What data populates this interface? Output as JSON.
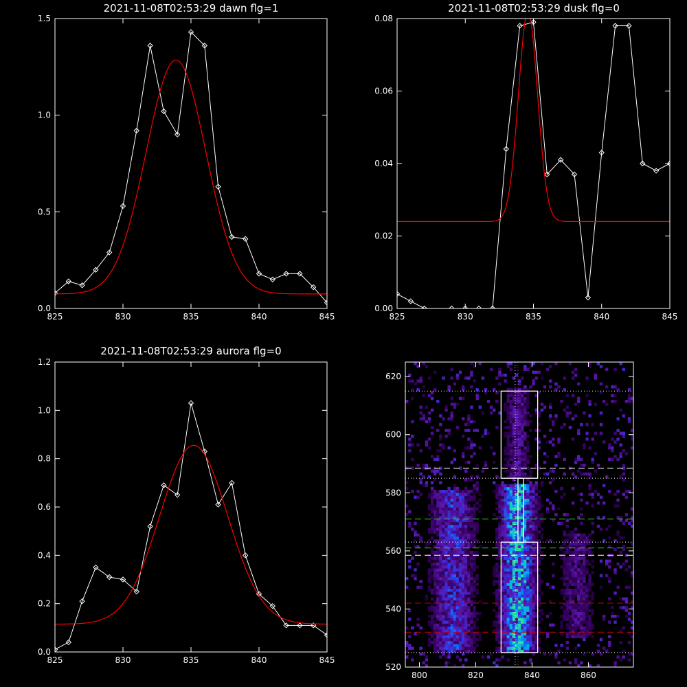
{
  "chart_data": [
    {
      "type": "line",
      "title": "2021-11-08T02:53:29 dawn flg=1",
      "xlim": [
        825,
        845
      ],
      "ylim": [
        0,
        1.5
      ],
      "xticks": [
        825,
        830,
        835,
        840,
        845
      ],
      "yticks": [
        0,
        0.5,
        1.0,
        1.5
      ],
      "ytick_labels": [
        "0.0",
        "0.5",
        "1.0",
        "1.5"
      ],
      "series": [
        {
          "kind": "data",
          "color": "#ffffff",
          "marker": "diamond",
          "x": [
            825,
            826,
            827,
            828,
            829,
            830,
            831,
            832,
            833,
            834,
            835,
            836,
            837,
            838,
            839,
            840,
            841,
            842,
            843,
            844,
            845
          ],
          "y": [
            0.08,
            0.14,
            0.12,
            0.2,
            0.29,
            0.53,
            0.92,
            1.36,
            1.02,
            0.9,
            1.43,
            1.36,
            0.63,
            0.37,
            0.36,
            0.18,
            0.15,
            0.18,
            0.18,
            0.11,
            0.03
          ]
        },
        {
          "kind": "fit",
          "color": "#ff0000",
          "gaussian": {
            "amplitude": 1.21,
            "center": 833.9,
            "sigma": 2.2,
            "baseline": 0.075
          }
        }
      ]
    },
    {
      "type": "line",
      "title": "2021-11-08T02:53:29 dusk flg=0",
      "xlim": [
        825,
        845
      ],
      "ylim": [
        0,
        0.08
      ],
      "xticks": [
        825,
        830,
        835,
        840,
        845
      ],
      "yticks": [
        0,
        0.02,
        0.04,
        0.06,
        0.08
      ],
      "ytick_labels": [
        "0.00",
        "0.02",
        "0.04",
        "0.06",
        "0.08"
      ],
      "series": [
        {
          "kind": "data",
          "color": "#ffffff",
          "marker": "diamond",
          "x": [
            825,
            826,
            827,
            828,
            829,
            830,
            831,
            832,
            833,
            834,
            835,
            836,
            837,
            838,
            839,
            840,
            841,
            842,
            843,
            844,
            845
          ],
          "y": [
            0.004,
            0.002,
            0.0,
            -0.001,
            0.0,
            0.0,
            0.0,
            0.0,
            0.044,
            0.078,
            0.079,
            0.037,
            0.041,
            0.037,
            0.003,
            0.043,
            0.078,
            0.078,
            0.04,
            0.038,
            0.04
          ]
        },
        {
          "kind": "fit",
          "color": "#ff0000",
          "gaussian": {
            "amplitude": 0.058,
            "center": 834.6,
            "sigma": 0.7,
            "baseline": 0.024
          }
        }
      ]
    },
    {
      "type": "line",
      "title": "2021-11-08T02:53:29 aurora flg=0",
      "xlim": [
        825,
        845
      ],
      "ylim": [
        0,
        1.2
      ],
      "xticks": [
        825,
        830,
        835,
        840,
        845
      ],
      "yticks": [
        0,
        0.2,
        0.4,
        0.6,
        0.8,
        1.0,
        1.2
      ],
      "ytick_labels": [
        "0.0",
        "0.2",
        "0.4",
        "0.6",
        "0.8",
        "1.0",
        "1.2"
      ],
      "series": [
        {
          "kind": "data",
          "color": "#ffffff",
          "marker": "diamond",
          "x": [
            825,
            826,
            827,
            828,
            829,
            830,
            831,
            832,
            833,
            834,
            835,
            836,
            837,
            838,
            839,
            840,
            841,
            842,
            843,
            844,
            845
          ],
          "y": [
            0.01,
            0.04,
            0.21,
            0.35,
            0.31,
            0.3,
            0.25,
            0.52,
            0.69,
            0.65,
            1.03,
            0.83,
            0.61,
            0.7,
            0.4,
            0.24,
            0.19,
            0.11,
            0.11,
            0.11,
            0.07
          ]
        },
        {
          "kind": "fit",
          "color": "#ff0000",
          "gaussian": {
            "amplitude": 0.74,
            "center": 835.2,
            "sigma": 2.5,
            "baseline": 0.115
          }
        }
      ]
    },
    {
      "type": "heatmap",
      "title": "",
      "xlim": [
        795,
        876
      ],
      "ylim": [
        520,
        625
      ],
      "xticks": [
        800,
        820,
        840,
        860
      ],
      "yticks": [
        520,
        540,
        560,
        580,
        600,
        620
      ],
      "seed": 20211108,
      "intensity_bands": [
        {
          "x_center": 812,
          "x_width": 5,
          "y_range": [
            525,
            580
          ],
          "strength": 0.55
        },
        {
          "x_center": 835,
          "x_width": 4,
          "y_range": [
            525,
            582
          ],
          "strength": 0.95
        },
        {
          "x_center": 856,
          "x_width": 4,
          "y_range": [
            530,
            565
          ],
          "strength": 0.3
        },
        {
          "x_center": 835,
          "x_width": 3,
          "y_range": [
            585,
            615
          ],
          "strength": 0.35
        }
      ],
      "boxes": [
        {
          "x": [
            829,
            842
          ],
          "y": [
            585,
            615
          ],
          "color": "#ffffff"
        },
        {
          "x": [
            829,
            842
          ],
          "y": [
            525,
            563
          ],
          "color": "#ffffff"
        },
        {
          "x": [
            835,
            837
          ],
          "y": [
            563,
            585
          ],
          "color": "#ffffff"
        }
      ],
      "hlines": [
        {
          "y": 615,
          "color": "#ffffff",
          "style": "dotted"
        },
        {
          "y": 588.5,
          "color": "#ffffff",
          "style": "dashed"
        },
        {
          "y": 585,
          "color": "#ffffff",
          "style": "dotted"
        },
        {
          "y": 571,
          "color": "#33dd33",
          "style": "dashed"
        },
        {
          "y": 563,
          "color": "#ffffff",
          "style": "dotted"
        },
        {
          "y": 561,
          "color": "#33dd33",
          "style": "dashed"
        },
        {
          "y": 558.5,
          "color": "#ffffff",
          "style": "dashed"
        },
        {
          "y": 542,
          "color": "#cc0000",
          "style": "dashed"
        },
        {
          "y": 532,
          "color": "#cc0000",
          "style": "dashed"
        },
        {
          "y": 525,
          "color": "#ffffff",
          "style": "dotted"
        }
      ],
      "vlines": [
        {
          "x": 834,
          "color": "#ffffff",
          "style": "dotted"
        },
        {
          "x": 835,
          "color": "#cc33cc",
          "style": "dotted"
        }
      ]
    }
  ]
}
